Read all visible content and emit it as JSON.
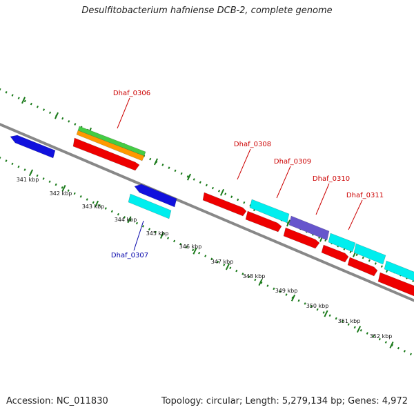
{
  "title": "Desulfitobacterium hafniense DCB-2, complete genome",
  "footer": {
    "accession": "Accession: NC_011830",
    "summary": "Topology: circular; Length: 5,279,134 bp; Genes: 4,972"
  },
  "colors": {
    "backbone": "#888888",
    "tick": "#1a7a1a",
    "label_forward": "#cc0000",
    "label_reverse": "#0000aa",
    "red": "#ee0000",
    "blue": "#1111dd",
    "cyan": "#00eeee",
    "green": "#44cc44",
    "orange": "#ff9900",
    "purple": "#6655cc"
  },
  "scale_labels": [
    "341 kbp",
    "342 kbp",
    "343 kbp",
    "344 kbp",
    "345 kbp",
    "346 kbp",
    "347 kbp",
    "348 kbp",
    "349 kbp",
    "350 kbp",
    "351 kbp",
    "352 kbp"
  ],
  "gene_labels": [
    {
      "text": "Dhaf_0306",
      "color": "red"
    },
    {
      "text": "Dhaf_0307",
      "color": "blue"
    },
    {
      "text": "Dhaf_0308",
      "color": "red"
    },
    {
      "text": "Dhaf_0309",
      "color": "red"
    },
    {
      "text": "Dhaf_0310",
      "color": "red"
    },
    {
      "text": "Dhaf_0311",
      "color": "red"
    }
  ]
}
